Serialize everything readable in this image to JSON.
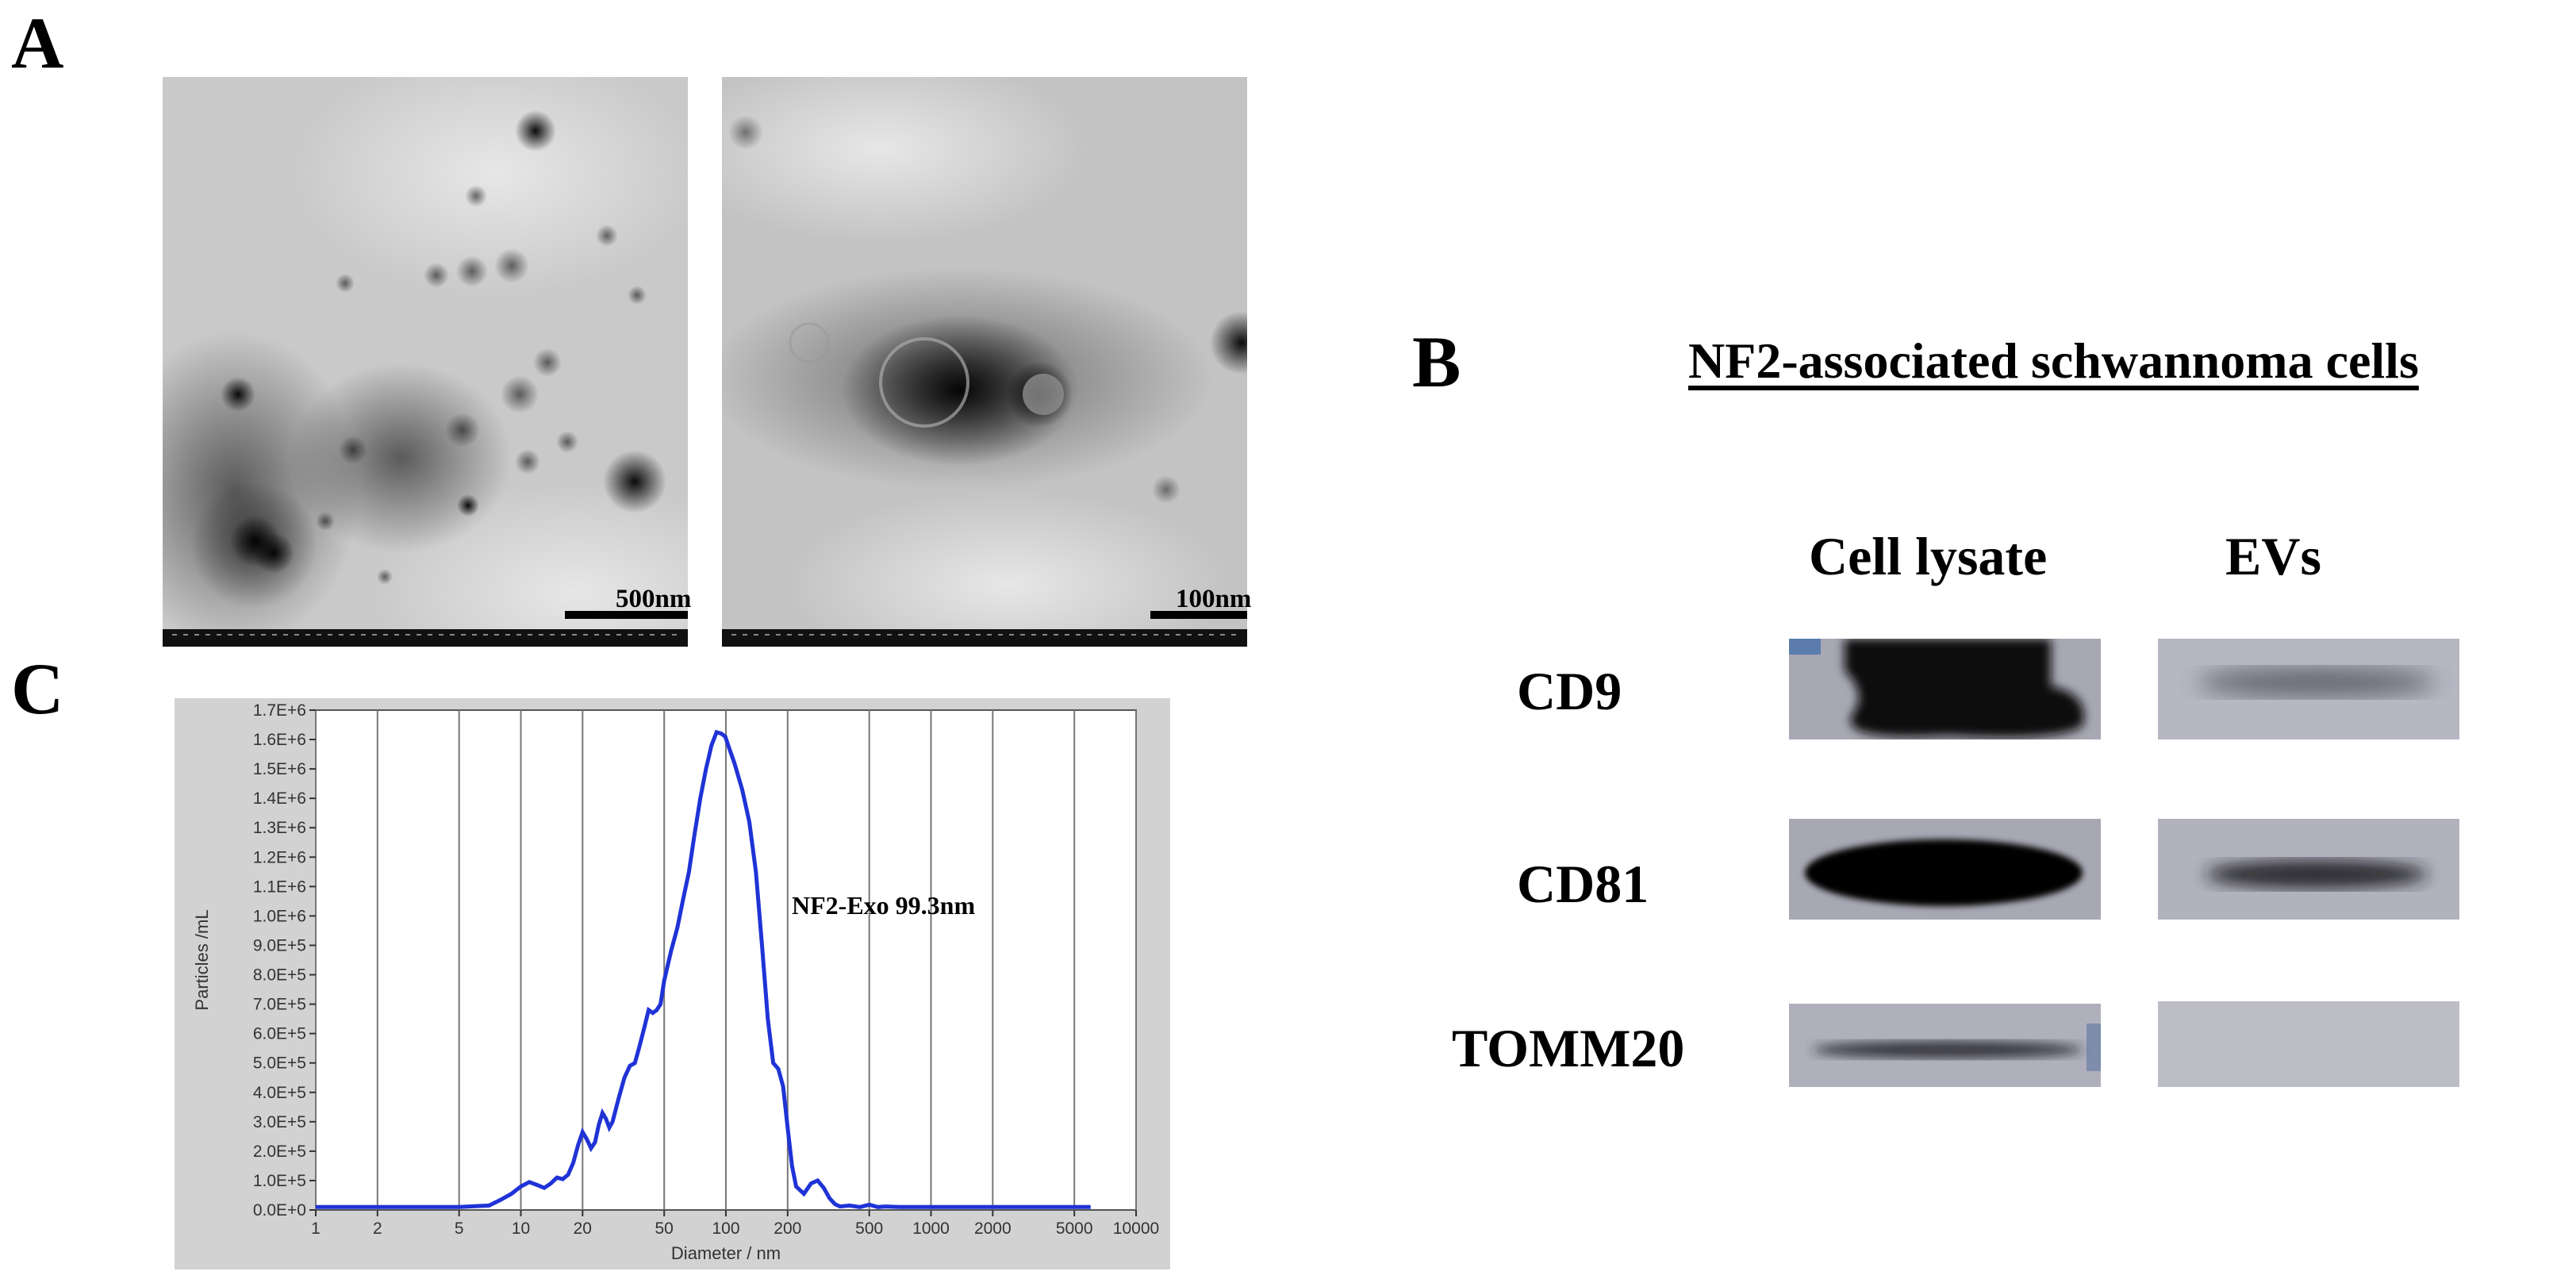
{
  "panels": {
    "a": {
      "letter": "A",
      "images": [
        {
          "scale_label": "500nm"
        },
        {
          "scale_label": "100nm"
        }
      ]
    },
    "b": {
      "letter": "B",
      "title": "NF2-associated schwannoma cells",
      "columns": [
        "Cell lysate",
        "EVs"
      ],
      "rows": [
        "CD9",
        "CD81",
        "TOMM20"
      ]
    },
    "c": {
      "letter": "C",
      "annotation": "NF2-Exo 99.3nm"
    }
  },
  "chart_data": {
    "type": "line",
    "xscale": "log",
    "xlabel": "Diameter / nm",
    "ylabel": "Particles /mL",
    "xlim": [
      1,
      10000
    ],
    "ylim": [
      0,
      1700000
    ],
    "xticks": [
      "1",
      "2",
      "5",
      "10",
      "20",
      "50",
      "100",
      "200",
      "500",
      "1000",
      "2000",
      "5000",
      "10000"
    ],
    "yticks": [
      "0.0E+0",
      "1.0E+5",
      "2.0E+5",
      "3.0E+5",
      "4.0E+5",
      "5.0E+5",
      "6.0E+5",
      "7.0E+5",
      "8.0E+5",
      "9.0E+5",
      "1.0E+6",
      "1.1E+6",
      "1.2E+6",
      "1.3E+6",
      "1.4E+6",
      "1.5E+6",
      "1.6E+6",
      "1.7E+6"
    ],
    "grid": true,
    "line_color": "#1f33d6",
    "series": [
      {
        "x": [
          1,
          5,
          7,
          8,
          9,
          10,
          11,
          12,
          13,
          14,
          15,
          16,
          17,
          18,
          19,
          20,
          21,
          22,
          23,
          24,
          25,
          26,
          27,
          28,
          30,
          32,
          34,
          36,
          38,
          40,
          42,
          44,
          46,
          48,
          50,
          54,
          58,
          62,
          66,
          70,
          75,
          80,
          85,
          90,
          95,
          99.3,
          105,
          110,
          120,
          130,
          140,
          150,
          160,
          170,
          180,
          190,
          200,
          210,
          220,
          240,
          260,
          280,
          300,
          320,
          340,
          360,
          400,
          450,
          500,
          550,
          600,
          700,
          1000,
          2000,
          5000,
          6000
        ],
        "y": [
          10000,
          10000,
          15000,
          35000,
          55000,
          80000,
          95000,
          85000,
          75000,
          90000,
          110000,
          105000,
          120000,
          160000,
          220000,
          265000,
          240000,
          210000,
          230000,
          290000,
          330000,
          310000,
          280000,
          300000,
          380000,
          450000,
          490000,
          500000,
          560000,
          620000,
          680000,
          670000,
          680000,
          700000,
          780000,
          880000,
          960000,
          1060000,
          1150000,
          1270000,
          1400000,
          1500000,
          1580000,
          1625000,
          1620000,
          1610000,
          1560000,
          1520000,
          1430000,
          1320000,
          1150000,
          900000,
          650000,
          500000,
          480000,
          420000,
          280000,
          150000,
          80000,
          55000,
          90000,
          100000,
          75000,
          40000,
          20000,
          12000,
          15000,
          10000,
          18000,
          10000,
          12000,
          10000,
          10000,
          10000,
          10000,
          10000
        ]
      }
    ]
  }
}
